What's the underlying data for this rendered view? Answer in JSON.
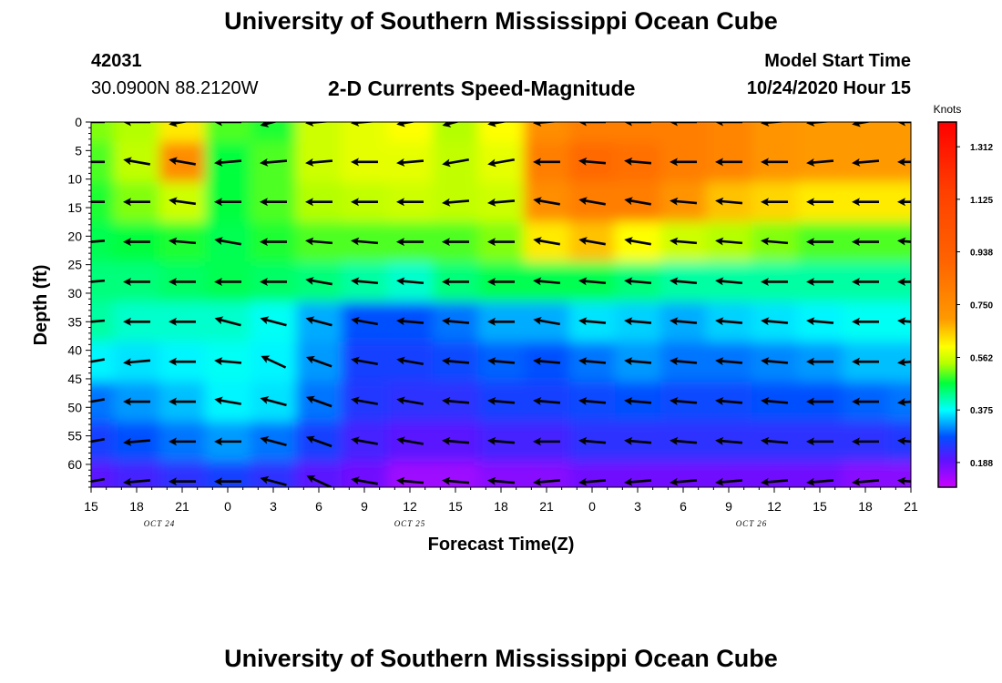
{
  "header": {
    "title": "University of Southern Mississippi Ocean Cube",
    "station_id": "42031",
    "station_coords": "30.0900N 88.2120W",
    "subtitle": "2-D Currents Speed-Magnitude",
    "model_label": "Model Start Time",
    "model_time": "10/24/2020 Hour 15"
  },
  "footer": {
    "title": "University of Southern Mississippi Ocean Cube"
  },
  "chart_data": {
    "type": "heatmap",
    "title": "2-D Currents Speed-Magnitude",
    "xlabel": "Forecast Time(Z)",
    "ylabel": "Depth (ft)",
    "x_tick_labels": [
      "15",
      "18",
      "21",
      "0",
      "3",
      "6",
      "9",
      "12",
      "15",
      "18",
      "21",
      "0",
      "3",
      "6",
      "9",
      "12",
      "15",
      "18",
      "21"
    ],
    "date_labels": [
      {
        "label": "OCT 24",
        "tick_index": 1.5
      },
      {
        "label": "OCT 25",
        "tick_index": 7
      },
      {
        "label": "OCT 26",
        "tick_index": 14.5
      }
    ],
    "x_range_hours": [
      0,
      54
    ],
    "ylim": [
      0,
      64
    ],
    "y_ticks": [
      0,
      5,
      10,
      15,
      20,
      25,
      30,
      35,
      40,
      45,
      50,
      55,
      60
    ],
    "colorbar": {
      "title": "Knots",
      "range": [
        0.1,
        1.4
      ],
      "ticks": [
        "0.188",
        "0.375",
        "0.562",
        "0.750",
        "0.938",
        "1.125",
        "1.312"
      ],
      "tick_values": [
        0.188,
        0.375,
        0.562,
        0.75,
        0.938,
        1.125,
        1.312
      ],
      "stops": [
        {
          "v": 0.1,
          "c": "#cc00ff"
        },
        {
          "v": 0.2,
          "c": "#5a14ff"
        },
        {
          "v": 0.28,
          "c": "#0050ff"
        },
        {
          "v": 0.375,
          "c": "#00ffff"
        },
        {
          "v": 0.47,
          "c": "#00ff3c"
        },
        {
          "v": 0.54,
          "c": "#b4ff00"
        },
        {
          "v": 0.6,
          "c": "#ffff00"
        },
        {
          "v": 0.7,
          "c": "#ff9900"
        },
        {
          "v": 0.9,
          "c": "#ff6400"
        },
        {
          "v": 1.15,
          "c": "#ff4000"
        },
        {
          "v": 1.4,
          "c": "#ff0000"
        }
      ]
    },
    "depths_ft": [
      0,
      7,
      14,
      21,
      28,
      35,
      42,
      49,
      56,
      63
    ],
    "times_h": [
      0,
      3,
      6,
      9,
      12,
      15,
      18,
      21,
      24,
      27,
      30,
      33,
      36,
      39,
      42,
      45,
      48,
      51,
      54
    ],
    "speed_knots": [
      [
        0.52,
        0.54,
        0.62,
        0.5,
        0.48,
        0.56,
        0.58,
        0.6,
        0.54,
        0.6,
        0.74,
        0.8,
        0.8,
        0.8,
        0.78,
        0.72,
        0.7,
        0.7,
        0.7
      ],
      [
        0.5,
        0.55,
        0.75,
        0.47,
        0.5,
        0.56,
        0.58,
        0.58,
        0.55,
        0.58,
        0.8,
        0.88,
        0.86,
        0.8,
        0.78,
        0.72,
        0.7,
        0.7,
        0.7
      ],
      [
        0.48,
        0.52,
        0.56,
        0.47,
        0.5,
        0.54,
        0.55,
        0.56,
        0.55,
        0.56,
        0.74,
        0.8,
        0.8,
        0.72,
        0.66,
        0.64,
        0.62,
        0.62,
        0.62
      ],
      [
        0.46,
        0.47,
        0.48,
        0.46,
        0.48,
        0.5,
        0.5,
        0.5,
        0.5,
        0.52,
        0.62,
        0.66,
        0.6,
        0.56,
        0.54,
        0.52,
        0.5,
        0.5,
        0.5
      ],
      [
        0.44,
        0.44,
        0.45,
        0.46,
        0.45,
        0.44,
        0.42,
        0.4,
        0.44,
        0.46,
        0.46,
        0.46,
        0.44,
        0.42,
        0.42,
        0.42,
        0.42,
        0.42,
        0.42
      ],
      [
        0.42,
        0.4,
        0.4,
        0.4,
        0.38,
        0.33,
        0.28,
        0.28,
        0.3,
        0.33,
        0.33,
        0.36,
        0.35,
        0.33,
        0.35,
        0.36,
        0.37,
        0.38,
        0.38
      ],
      [
        0.37,
        0.36,
        0.37,
        0.38,
        0.37,
        0.32,
        0.26,
        0.26,
        0.27,
        0.29,
        0.28,
        0.3,
        0.32,
        0.3,
        0.3,
        0.31,
        0.32,
        0.34,
        0.34
      ],
      [
        0.3,
        0.32,
        0.34,
        0.37,
        0.36,
        0.3,
        0.25,
        0.24,
        0.24,
        0.26,
        0.26,
        0.27,
        0.28,
        0.27,
        0.27,
        0.28,
        0.28,
        0.29,
        0.3
      ],
      [
        0.26,
        0.28,
        0.3,
        0.32,
        0.3,
        0.26,
        0.22,
        0.2,
        0.2,
        0.22,
        0.22,
        0.24,
        0.24,
        0.24,
        0.24,
        0.24,
        0.24,
        0.24,
        0.25
      ],
      [
        0.2,
        0.22,
        0.24,
        0.26,
        0.24,
        0.2,
        0.18,
        0.14,
        0.14,
        0.16,
        0.16,
        0.18,
        0.18,
        0.18,
        0.18,
        0.18,
        0.18,
        0.16,
        0.16
      ]
    ],
    "direction_deg": [
      [
        0,
        0,
        -10,
        0,
        -15,
        -5,
        -5,
        -10,
        -15,
        -10,
        -5,
        0,
        0,
        0,
        0,
        -5,
        -5,
        -10,
        0
      ],
      [
        0,
        10,
        10,
        -5,
        -5,
        -5,
        0,
        -5,
        -10,
        -10,
        0,
        5,
        5,
        0,
        0,
        0,
        -5,
        -5,
        0
      ],
      [
        0,
        0,
        8,
        0,
        0,
        0,
        0,
        0,
        -5,
        -5,
        10,
        10,
        10,
        5,
        5,
        0,
        0,
        0,
        0
      ],
      [
        -5,
        0,
        5,
        10,
        0,
        5,
        5,
        0,
        0,
        0,
        10,
        10,
        10,
        5,
        5,
        5,
        0,
        0,
        5
      ],
      [
        -5,
        0,
        0,
        0,
        0,
        10,
        5,
        5,
        0,
        0,
        5,
        5,
        5,
        5,
        5,
        0,
        0,
        0,
        0
      ],
      [
        -5,
        0,
        0,
        15,
        15,
        15,
        10,
        5,
        5,
        0,
        10,
        5,
        5,
        5,
        5,
        5,
        5,
        0,
        5
      ],
      [
        -10,
        -5,
        0,
        5,
        25,
        20,
        10,
        10,
        5,
        5,
        5,
        5,
        5,
        5,
        5,
        5,
        0,
        0,
        -5
      ],
      [
        -10,
        0,
        0,
        10,
        15,
        20,
        10,
        10,
        5,
        5,
        5,
        5,
        5,
        5,
        5,
        5,
        0,
        0,
        -5
      ],
      [
        -10,
        -5,
        0,
        0,
        15,
        20,
        10,
        10,
        5,
        5,
        0,
        5,
        5,
        5,
        5,
        5,
        0,
        0,
        5
      ],
      [
        -10,
        -5,
        0,
        0,
        15,
        25,
        10,
        5,
        5,
        5,
        -5,
        -5,
        -5,
        -5,
        -5,
        -5,
        -5,
        -5,
        5
      ]
    ]
  }
}
